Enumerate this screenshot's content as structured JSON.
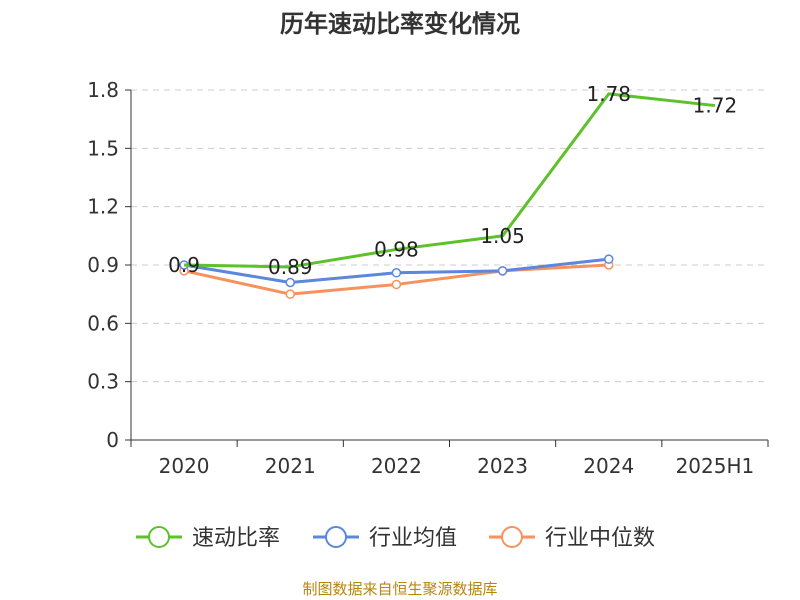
{
  "chart_data": {
    "type": "line",
    "title": "历年速动比率变化情况",
    "categories": [
      "2020",
      "2021",
      "2022",
      "2023",
      "2024",
      "2025H1"
    ],
    "y_ticks": [
      "0",
      "0.3",
      "0.6",
      "0.9",
      "1.2",
      "1.5",
      "1.8"
    ],
    "ylim": [
      0,
      1.8
    ],
    "grid": "horizontal-dashed",
    "legend_position": "bottom",
    "series": [
      {
        "name": "速动比率",
        "color": "#5dc12b",
        "values": [
          0.9,
          0.89,
          0.98,
          1.05,
          1.78,
          1.72
        ],
        "labels": [
          "0.9",
          "0.89",
          "0.98",
          "1.05",
          "1.78",
          "1.72"
        ],
        "show_labels": true,
        "show_markers": false
      },
      {
        "name": "行业均值",
        "color": "#5b87dc",
        "values": [
          0.9,
          0.81,
          0.86,
          0.87,
          0.93,
          null
        ],
        "show_labels": false,
        "show_markers": true
      },
      {
        "name": "行业中位数",
        "color": "#f7925e",
        "values": [
          0.87,
          0.75,
          0.8,
          0.87,
          0.9,
          null
        ],
        "show_labels": false,
        "show_markers": true
      }
    ]
  },
  "source_text": "制图数据来自恒生聚源数据库"
}
